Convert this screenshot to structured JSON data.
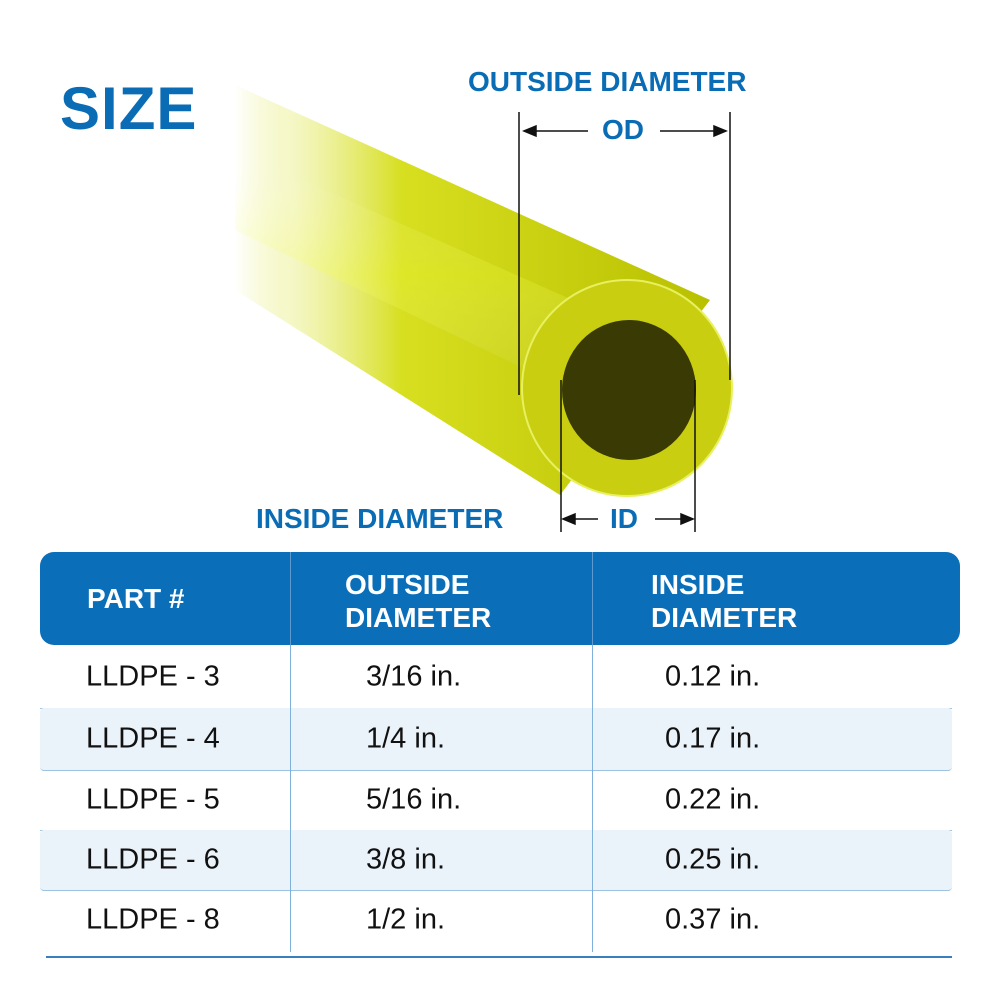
{
  "title": "SIZE",
  "diagram": {
    "outside_label": "OUTSIDE DIAMETER",
    "outside_abbr": "OD",
    "inside_label": "INSIDE DIAMETER",
    "inside_abbr": "ID",
    "tube_color": "#d4dc00"
  },
  "table": {
    "headers": [
      [
        "PART #"
      ],
      [
        "OUTSIDE",
        "DIAMETER"
      ],
      [
        "INSIDE",
        "DIAMETER"
      ]
    ],
    "rows": [
      [
        "LLDPE - 3",
        "3/16 in.",
        "0.12 in."
      ],
      [
        "LLDPE - 4",
        "1/4 in.",
        "0.17 in."
      ],
      [
        "LLDPE - 5",
        "5/16 in.",
        "0.22 in."
      ],
      [
        "LLDPE - 6",
        "3/8 in.",
        "0.25 in."
      ],
      [
        "LLDPE - 8",
        "1/2 in.",
        "0.37 in."
      ]
    ],
    "header_color": "#0a6fb8",
    "alt_row_color": "#ebf3fa"
  }
}
